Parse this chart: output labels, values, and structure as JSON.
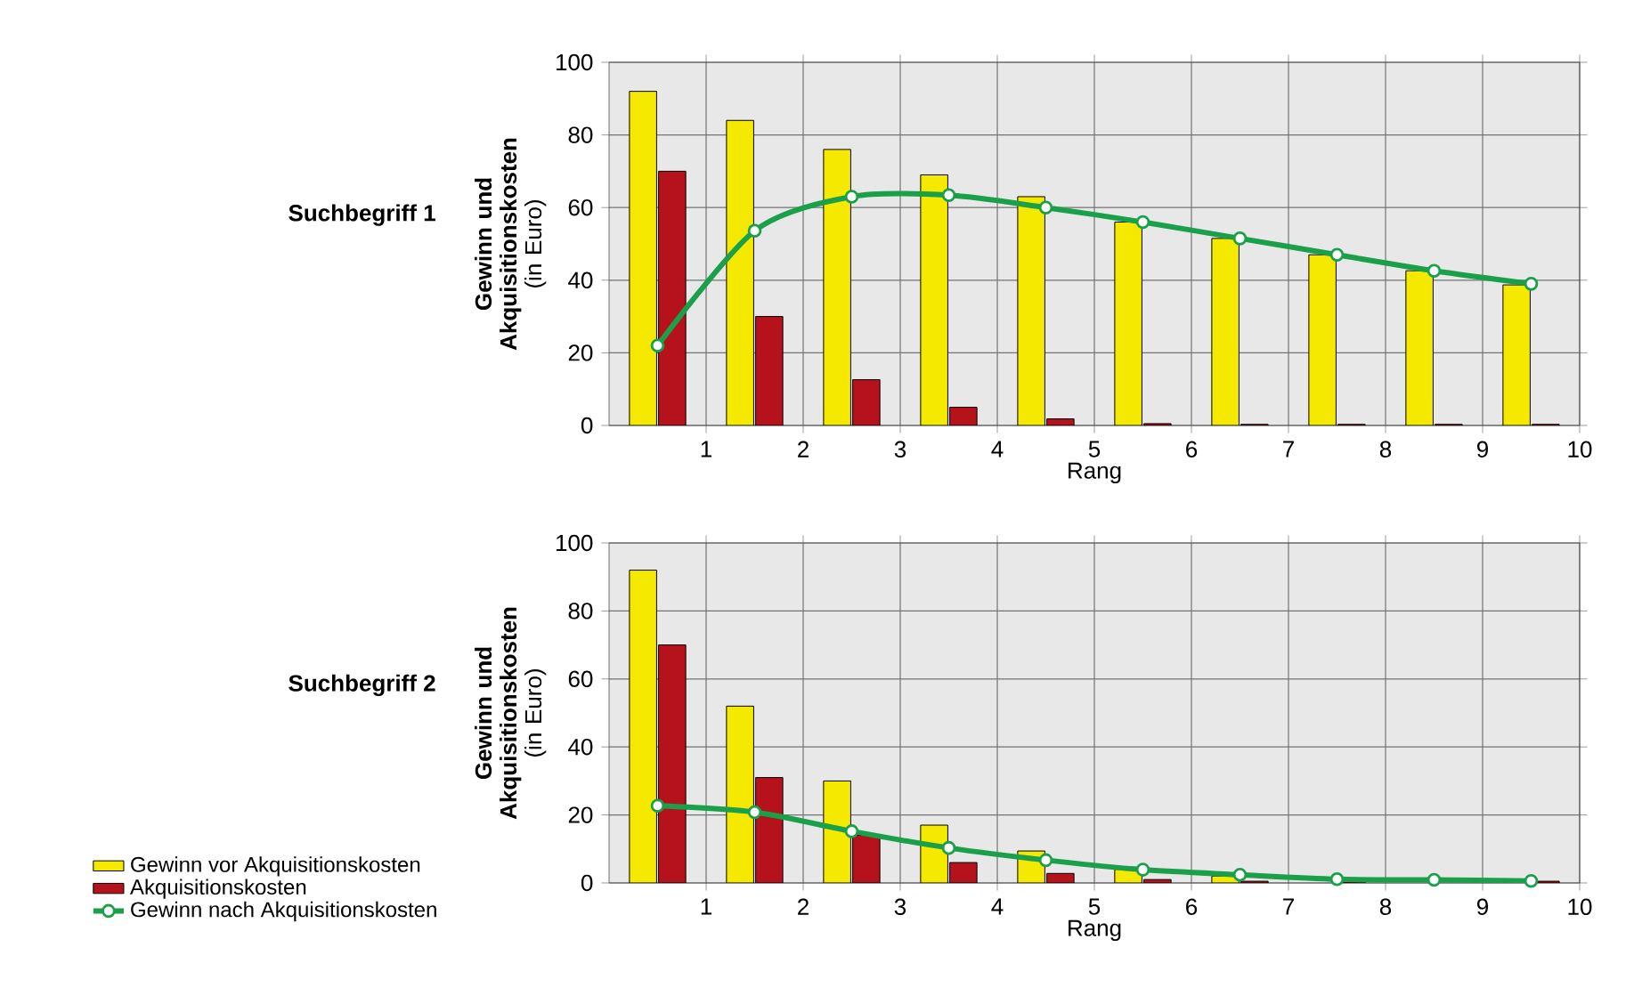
{
  "chart_data": [
    {
      "type": "bar",
      "title": "Suchbegriff 1",
      "xlabel": "Rang",
      "ylabel": "**Gewinn und Akquisitionskosten** (in Euro)",
      "x": [
        0.5,
        1.5,
        2.5,
        3.5,
        4.5,
        5.5,
        6.5,
        7.5,
        8.5,
        9.5
      ],
      "xlim": [
        0,
        10
      ],
      "xticks": [
        1,
        2,
        3,
        4,
        5,
        6,
        7,
        8,
        9,
        10
      ],
      "ylim": [
        0,
        100
      ],
      "yticks": [
        0,
        20,
        40,
        60,
        80,
        100
      ],
      "grid": true,
      "legend": false,
      "marker": "circle",
      "series": [
        {
          "color": "#f5e900",
          "values": [
            92,
            84,
            76,
            69,
            63,
            56,
            51.5,
            47,
            42.6,
            38.7
          ]
        },
        {
          "color": "#b5121b",
          "values": [
            70,
            30,
            12.6,
            5,
            1.8,
            0.5,
            0.3,
            0.3,
            0.3,
            0.3
          ]
        },
        {
          "type": "line",
          "color": "#1aa04a",
          "values": [
            22,
            53.6,
            63,
            63.4,
            60,
            56,
            51.5,
            47,
            42.6,
            39
          ]
        }
      ]
    },
    {
      "type": "bar",
      "title": "Suchbegriff 2",
      "xlabel": "Rang",
      "ylabel": "**Gewinn und Akquisitionskosten** (in Euro)",
      "x": [
        0.5,
        1.5,
        2.5,
        3.5,
        4.5,
        5.5,
        6.5,
        7.5,
        8.5,
        9.5
      ],
      "xlim": [
        0,
        10
      ],
      "xticks": [
        1,
        2,
        3,
        4,
        5,
        6,
        7,
        8,
        9,
        10
      ],
      "ylim": [
        0,
        100
      ],
      "yticks": [
        0,
        20,
        40,
        60,
        80,
        100
      ],
      "grid": true,
      "legend": "bottom left",
      "marker": "circle",
      "series": [
        {
          "name": "Gewinn vor Akquisitionskosten",
          "color": "#f5e900",
          "values": [
            92,
            52,
            30,
            17,
            9.4,
            4,
            2,
            null,
            null,
            null
          ]
        },
        {
          "name": "Akquisitionskosten",
          "color": "#b5121b",
          "values": [
            70,
            31,
            14,
            6,
            2.8,
            1,
            0.5,
            0.3,
            null,
            0.5
          ]
        },
        {
          "name": "Gewinn nach Akquisitionskosten",
          "type": "line",
          "color": "#1aa04a",
          "values": [
            22.7,
            20.8,
            15.2,
            10.3,
            6.7,
            3.9,
            2.4,
            1.1,
            0.9,
            0.6
          ]
        }
      ]
    }
  ]
}
